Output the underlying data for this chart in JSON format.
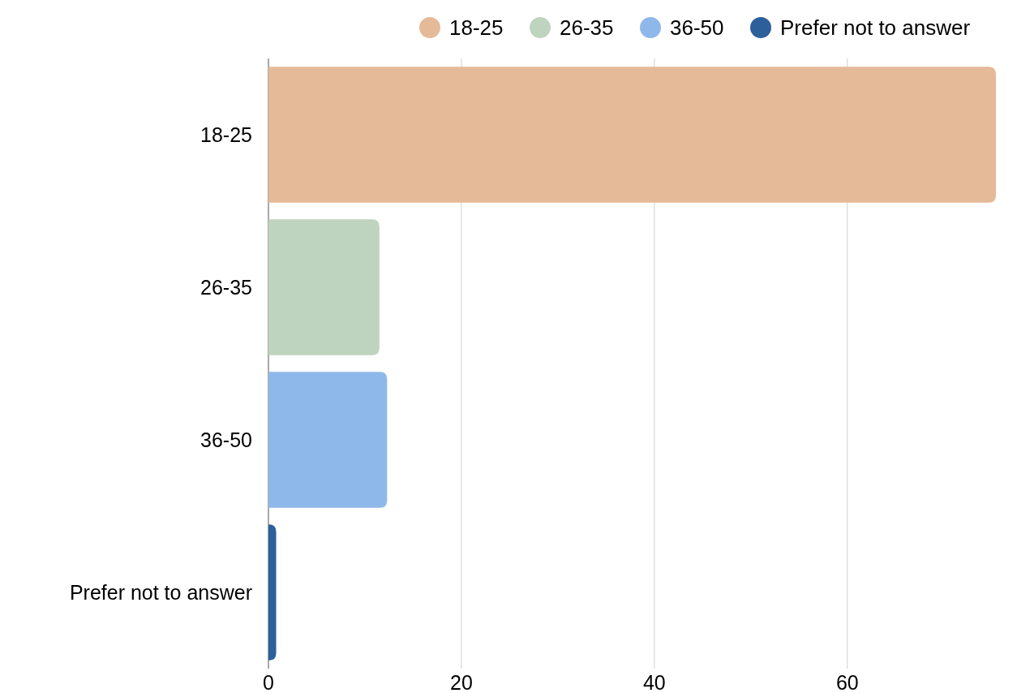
{
  "chart_data": {
    "type": "bar",
    "orientation": "horizontal",
    "categories": [
      "18-25",
      "26-35",
      "36-50",
      "Prefer not to answer"
    ],
    "series": [
      {
        "name": "18-25",
        "color": "#e5ba98",
        "values": [
          75.4,
          null,
          null,
          null
        ]
      },
      {
        "name": "26-35",
        "color": "#bfd4bf",
        "values": [
          null,
          11.5,
          null,
          null
        ]
      },
      {
        "name": "36-50",
        "color": "#8fb8ea",
        "values": [
          null,
          null,
          12.3,
          null
        ]
      },
      {
        "name": "Prefer not to answer",
        "color": "#2d5f9b",
        "values": [
          null,
          null,
          null,
          0.8
        ]
      }
    ],
    "xlim": [
      0,
      75.4
    ],
    "xticks": [
      0,
      20,
      40,
      60
    ],
    "grid": "x",
    "legend": "top right"
  }
}
